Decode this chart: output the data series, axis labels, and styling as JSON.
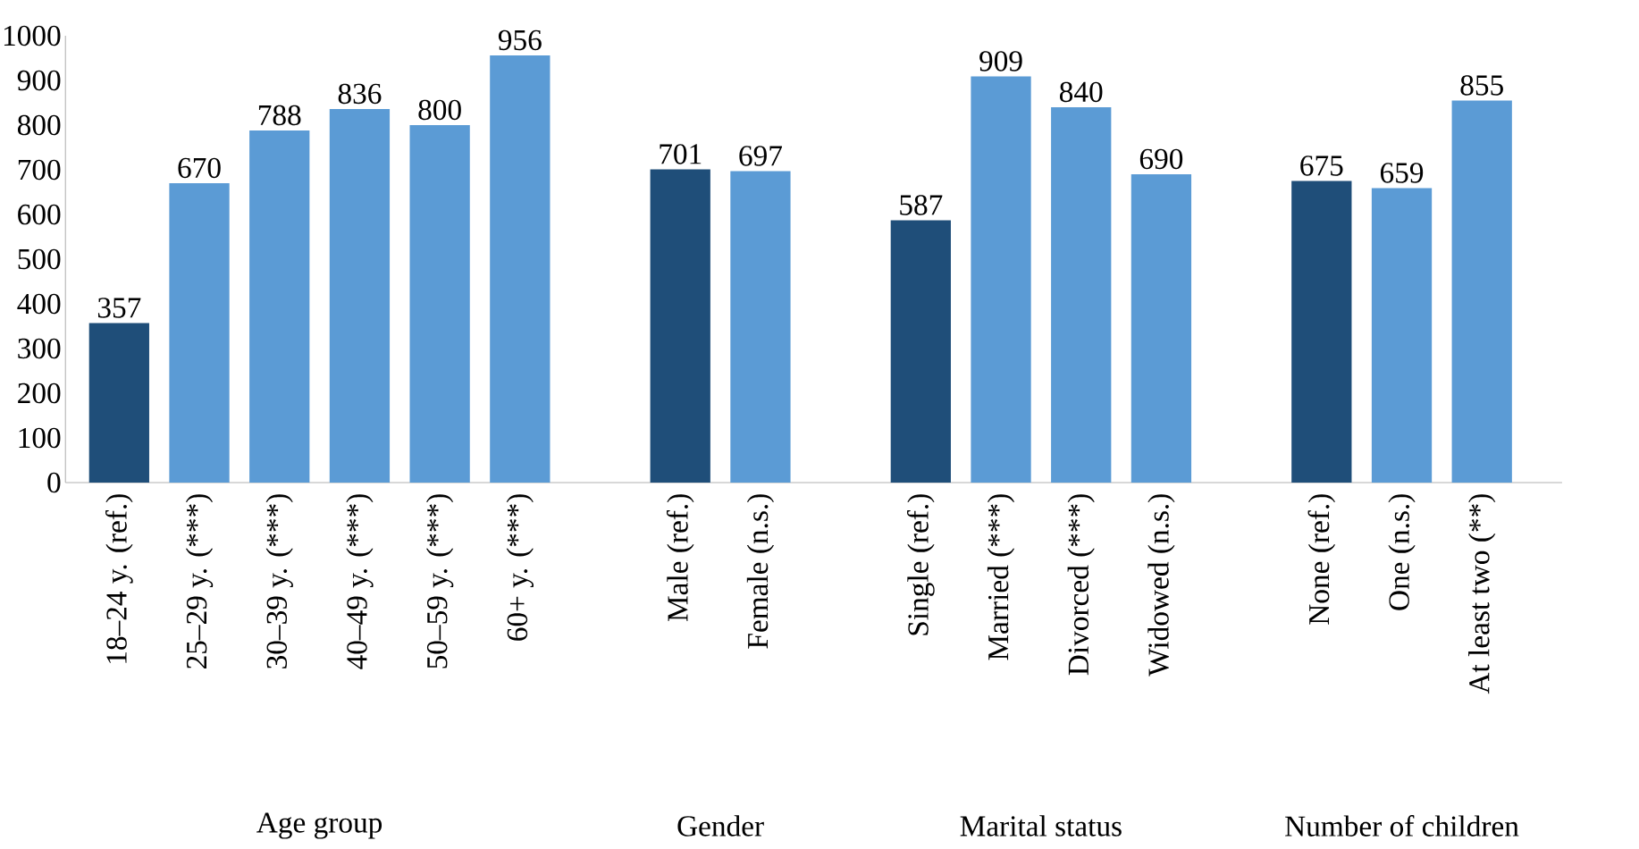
{
  "chart_data": {
    "type": "bar",
    "categories": [
      "18–24 y. (ref.)",
      "25–29 y. (***)",
      "30–39 y. (***)",
      "40–49 y. (***)",
      "50–59 y. (***)",
      "60+ y. (***)",
      null,
      "Male (ref.)",
      "Female (n.s.)",
      null,
      "Single (ref.)",
      "Married (***)",
      "Divorced (***)",
      "Widowed (n.s.)",
      null,
      "None (ref.)",
      "One (n.s.)",
      "At least two (**)"
    ],
    "values": [
      357,
      670,
      788,
      836,
      800,
      956,
      null,
      701,
      697,
      null,
      587,
      909,
      840,
      690,
      null,
      675,
      659,
      855
    ],
    "colors": [
      "#1f4e79",
      "#5b9bd5",
      "#5b9bd5",
      "#5b9bd5",
      "#5b9bd5",
      "#5b9bd5",
      null,
      "#1f4e79",
      "#5b9bd5",
      null,
      "#1f4e79",
      "#5b9bd5",
      "#5b9bd5",
      "#5b9bd5",
      null,
      "#1f4e79",
      "#5b9bd5",
      "#5b9bd5"
    ],
    "ylim": [
      0,
      1000
    ],
    "yticks": [
      0,
      100,
      200,
      300,
      400,
      500,
      600,
      700,
      800,
      900,
      1000
    ],
    "data_labels": true,
    "grid": false,
    "annotations": [
      "Age group",
      "Gender",
      "Marital status",
      "Number of children"
    ]
  }
}
